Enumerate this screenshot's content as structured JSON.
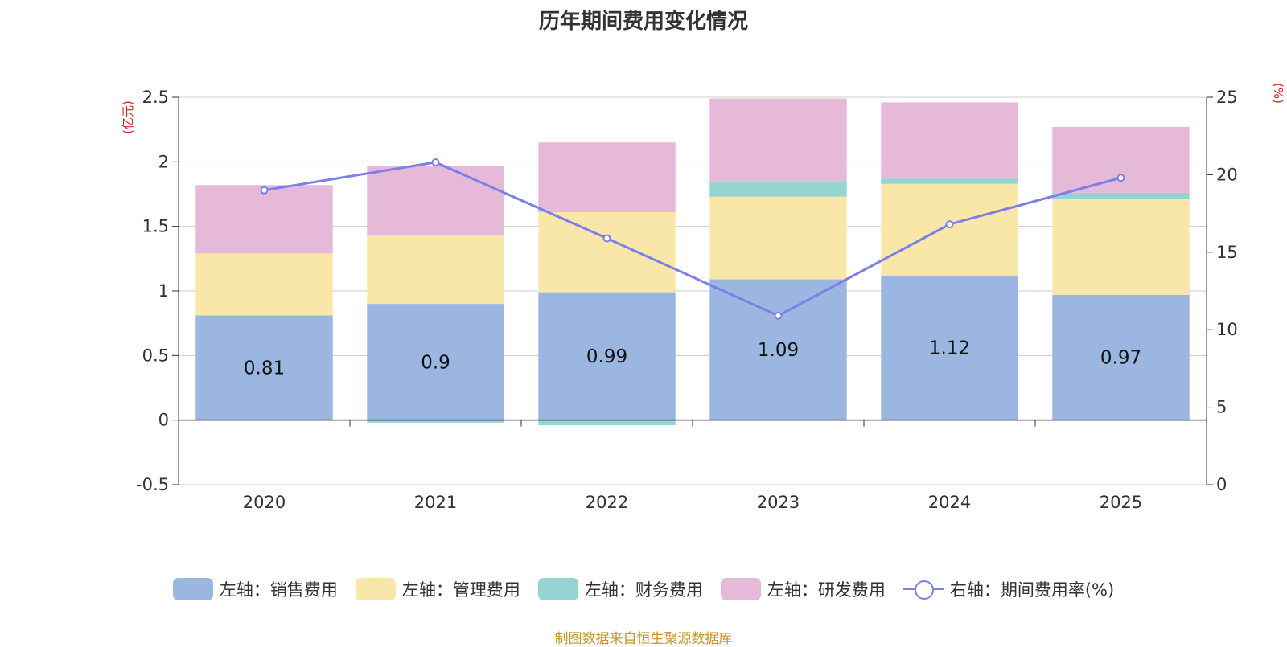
{
  "chart_data": {
    "type": "bar",
    "title": "历年期间费用变化情况",
    "categories": [
      "2020",
      "2021",
      "2022",
      "2023",
      "2024",
      "2025"
    ],
    "left_axis": {
      "unit": "(亿元)",
      "ylim": [
        -0.5,
        2.5
      ],
      "ticks": [
        -0.5,
        0,
        0.5,
        1,
        1.5,
        2,
        2.5
      ],
      "tick_labels": [
        "-0.5",
        "0",
        "0.5",
        "1",
        "1.5",
        "2",
        "2.5"
      ]
    },
    "right_axis": {
      "unit": "(%)",
      "ylim": [
        0,
        25
      ],
      "ticks": [
        0,
        5,
        10,
        15,
        20,
        25
      ],
      "tick_labels": [
        "0",
        "5",
        "10",
        "15",
        "20",
        "25"
      ]
    },
    "series": [
      {
        "name": "左轴：销售费用",
        "stack": true,
        "color": "#9bb7e1",
        "values": [
          0.81,
          0.9,
          0.99,
          1.09,
          1.12,
          0.97
        ],
        "data_labels": [
          "0.81",
          "0.9",
          "0.99",
          "1.09",
          "1.12",
          "0.97"
        ]
      },
      {
        "name": "左轴：管理费用",
        "stack": true,
        "color": "#f8e7a8",
        "values": [
          0.48,
          0.53,
          0.62,
          0.64,
          0.71,
          0.74
        ]
      },
      {
        "name": "左轴：财务费用",
        "stack": true,
        "color": "#96d3d3",
        "values": [
          0.0,
          -0.02,
          -0.04,
          0.11,
          0.04,
          0.05
        ]
      },
      {
        "name": "左轴：研发费用",
        "stack": true,
        "color": "#e7b9d9",
        "values": [
          0.53,
          0.54,
          0.54,
          0.65,
          0.59,
          0.51
        ]
      },
      {
        "name": "右轴：期间费用率(%)",
        "type": "line",
        "axis": "right",
        "color": "#7b7fe8",
        "values": [
          19.0,
          20.8,
          15.9,
          10.9,
          16.8,
          19.8
        ]
      }
    ],
    "source": "制图数据来自恒生聚源数据库"
  }
}
